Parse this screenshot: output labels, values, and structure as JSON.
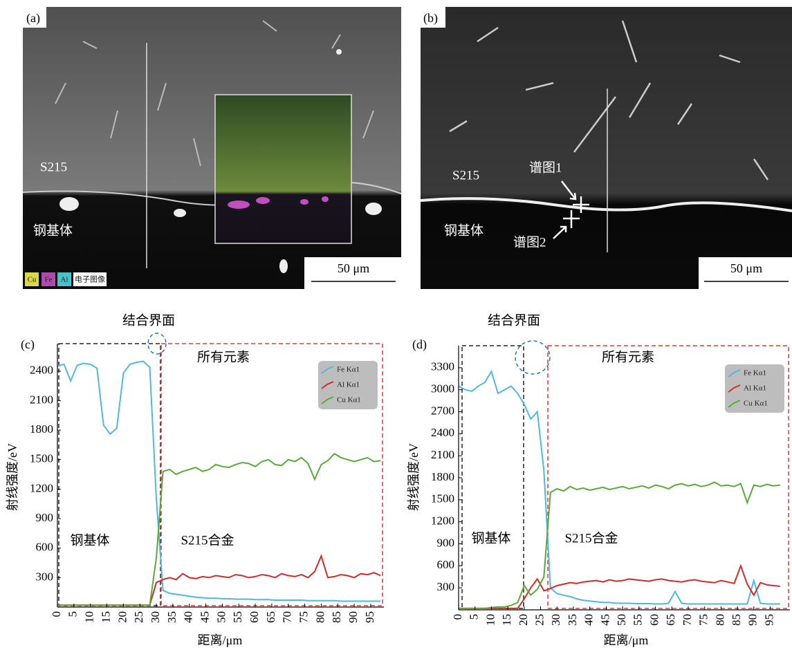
{
  "images": [
    {
      "panel": "(a)",
      "region_top": "S215",
      "region_bottom": "钢基体",
      "scale": "50 μm",
      "legend": [
        "Cu",
        "Fe",
        "Al",
        "电子图像"
      ]
    },
    {
      "panel": "(b)",
      "region_top": "S215",
      "region_bottom": "钢基体",
      "spectrum1": "谱图1",
      "spectrum2": "谱图2",
      "scale": "50 μm"
    }
  ],
  "chart_data": [
    {
      "type": "line",
      "panel": "(c)",
      "interface": "结合界面",
      "all_elements": "所有元素",
      "substrate": "钢基体",
      "alloy": "S215合金",
      "xlabel": "距离/μm",
      "ylabel": "射线强度/eV",
      "xlim": [
        0,
        99
      ],
      "ylim": [
        0,
        2680
      ],
      "xticks": [
        0,
        5,
        10,
        15,
        20,
        25,
        30,
        35,
        40,
        45,
        50,
        55,
        60,
        65,
        70,
        75,
        80,
        85,
        90,
        95
      ],
      "yticks": [
        300,
        600,
        900,
        1200,
        1500,
        1800,
        2100,
        2400
      ],
      "x": [
        0,
        2,
        4,
        6,
        8,
        10,
        12,
        14,
        16,
        18,
        20,
        22,
        24,
        26,
        28,
        30,
        32,
        34,
        36,
        38,
        40,
        42,
        44,
        46,
        48,
        50,
        52,
        54,
        56,
        58,
        60,
        62,
        64,
        66,
        68,
        70,
        72,
        74,
        76,
        78,
        80,
        82,
        84,
        86,
        88,
        90,
        92,
        94,
        96,
        98
      ],
      "series": [
        {
          "name": "Fe Kα1",
          "color": "#4fb8dc",
          "values": [
            2450,
            2470,
            2300,
            2460,
            2480,
            2470,
            2430,
            1850,
            1760,
            1820,
            2380,
            2470,
            2490,
            2500,
            2440,
            1100,
            170,
            140,
            130,
            120,
            110,
            100,
            95,
            90,
            90,
            85,
            85,
            80,
            80,
            80,
            75,
            75,
            75,
            70,
            70,
            70,
            70,
            70,
            65,
            65,
            65,
            65,
            65,
            60,
            60,
            60,
            60,
            60,
            60,
            60
          ]
        },
        {
          "name": "Al Kα1",
          "color": "#d42a2a",
          "values": [
            20,
            20,
            20,
            20,
            20,
            20,
            20,
            20,
            20,
            20,
            20,
            20,
            20,
            20,
            20,
            250,
            280,
            300,
            280,
            340,
            300,
            290,
            310,
            300,
            320,
            310,
            300,
            330,
            320,
            300,
            310,
            330,
            320,
            300,
            340,
            320,
            310,
            330,
            300,
            360,
            520,
            300,
            310,
            330,
            320,
            300,
            340,
            330,
            350,
            320
          ]
        },
        {
          "name": "Cu Kα1",
          "color": "#5aaa3a",
          "values": [
            20,
            20,
            20,
            20,
            20,
            20,
            20,
            20,
            20,
            20,
            20,
            20,
            20,
            20,
            20,
            500,
            1380,
            1400,
            1350,
            1380,
            1400,
            1420,
            1380,
            1400,
            1450,
            1430,
            1420,
            1450,
            1470,
            1460,
            1430,
            1480,
            1500,
            1450,
            1440,
            1500,
            1480,
            1520,
            1460,
            1300,
            1450,
            1490,
            1560,
            1520,
            1500,
            1480,
            1500,
            1520,
            1480,
            1490
          ]
        }
      ]
    },
    {
      "type": "line",
      "panel": "(d)",
      "interface": "结合界面",
      "all_elements": "所有元素",
      "substrate": "钢基体",
      "alloy": "S215合金",
      "xlabel": "距离/μm",
      "ylabel": "射线强度/eV",
      "xlim": [
        0,
        101
      ],
      "ylim": [
        0,
        3600
      ],
      "xticks": [
        0,
        5,
        10,
        15,
        20,
        25,
        30,
        35,
        40,
        45,
        50,
        55,
        60,
        65,
        70,
        75,
        80,
        85,
        90,
        95
      ],
      "yticks": [
        300,
        600,
        900,
        1200,
        1500,
        1800,
        2100,
        2400,
        2700,
        3000,
        3300
      ],
      "x": [
        0,
        2,
        4,
        6,
        8,
        10,
        12,
        14,
        16,
        18,
        20,
        22,
        24,
        26,
        28,
        30,
        32,
        34,
        36,
        38,
        40,
        42,
        44,
        46,
        48,
        50,
        52,
        54,
        56,
        58,
        60,
        62,
        64,
        66,
        68,
        70,
        72,
        74,
        76,
        78,
        80,
        82,
        84,
        86,
        88,
        90,
        92,
        94,
        96,
        98
      ],
      "series": [
        {
          "name": "Fe Kα1",
          "color": "#4fb8dc",
          "values": [
            3050,
            3000,
            2980,
            3050,
            3100,
            3250,
            2950,
            3000,
            3050,
            2950,
            2800,
            2600,
            2700,
            1900,
            300,
            220,
            200,
            180,
            150,
            130,
            120,
            110,
            100,
            100,
            90,
            90,
            90,
            85,
            85,
            85,
            80,
            80,
            90,
            250,
            90,
            80,
            80,
            80,
            80,
            80,
            80,
            80,
            80,
            80,
            80,
            400,
            90,
            80,
            80,
            80
          ]
        },
        {
          "name": "Al Kα1",
          "color": "#d42a2a",
          "values": [
            20,
            20,
            20,
            20,
            20,
            20,
            20,
            20,
            20,
            20,
            150,
            300,
            420,
            260,
            290,
            330,
            350,
            370,
            360,
            380,
            390,
            400,
            380,
            410,
            390,
            400,
            420,
            410,
            400,
            390,
            410,
            420,
            400,
            390,
            380,
            400,
            410,
            390,
            380,
            370,
            400,
            380,
            360,
            600,
            350,
            200,
            370,
            340,
            330,
            320
          ]
        },
        {
          "name": "Cu Kα1",
          "color": "#5aaa3a",
          "values": [
            20,
            20,
            20,
            20,
            20,
            30,
            40,
            40,
            60,
            100,
            330,
            200,
            280,
            450,
            1600,
            1650,
            1620,
            1680,
            1640,
            1660,
            1630,
            1650,
            1670,
            1640,
            1660,
            1680,
            1650,
            1670,
            1690,
            1660,
            1700,
            1680,
            1650,
            1700,
            1720,
            1690,
            1710,
            1680,
            1700,
            1740,
            1690,
            1700,
            1680,
            1720,
            1460,
            1700,
            1680,
            1710,
            1690,
            1700
          ]
        }
      ]
    }
  ]
}
